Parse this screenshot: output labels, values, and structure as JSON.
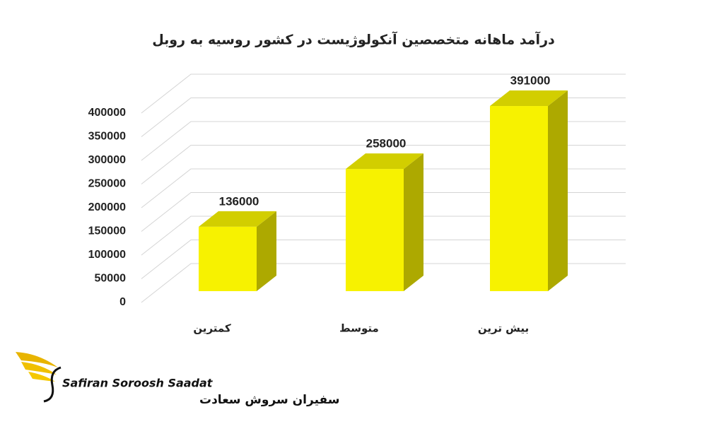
{
  "chart_data": {
    "type": "bar3d",
    "title": "درآمد ماهانه متخصصین آنکولوژیست در کشور روسیه به روبل",
    "categories": [
      "کمترین",
      "متوسط",
      "بیش ترین"
    ],
    "values": [
      136000,
      258000,
      391000
    ],
    "color": "#f7f200",
    "ylim": [
      0,
      400000
    ],
    "yticks": [
      0,
      50000,
      100000,
      150000,
      200000,
      250000,
      300000,
      350000,
      400000
    ],
    "grid": true
  },
  "logo": {
    "en": "Safiran Soroosh Saadat",
    "fa": "سفیران سروش سعادت"
  }
}
